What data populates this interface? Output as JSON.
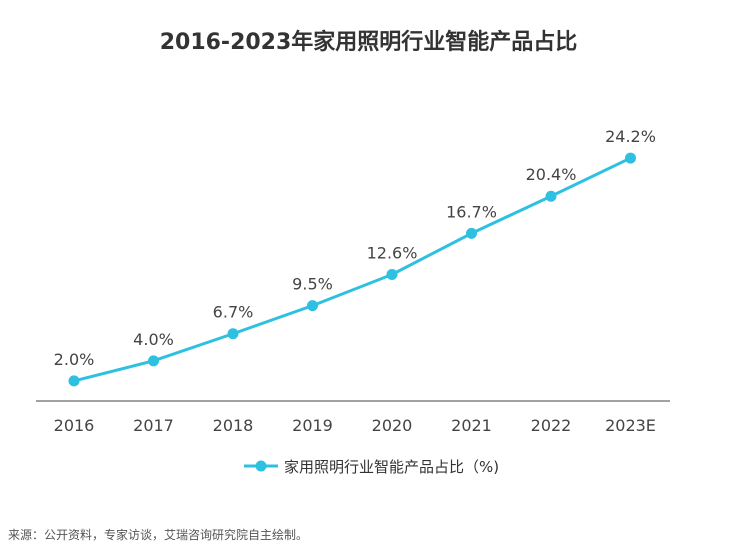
{
  "chart_data": {
    "type": "line",
    "title": "2016-2023年家用照明行业智能产品占比",
    "categories": [
      "2016",
      "2017",
      "2018",
      "2019",
      "2020",
      "2021",
      "2022",
      "2023E"
    ],
    "series": [
      {
        "name": "家用照明行业智能产品占比（%)",
        "values": [
          2.0,
          4.0,
          6.7,
          9.5,
          12.6,
          16.7,
          20.4,
          24.2
        ],
        "labels": [
          "2.0%",
          "4.0%",
          "6.7%",
          "9.5%",
          "12.6%",
          "16.7%",
          "20.4%",
          "24.2%"
        ]
      }
    ],
    "ylim": [
      0,
      26
    ],
    "grid": false,
    "legend_position": "bottom-center",
    "colors": {
      "line": "#2ec0e0",
      "axis": "#444444"
    }
  },
  "source": "来源：公开资料，专家访谈，艾瑞咨询研究院自主绘制。"
}
